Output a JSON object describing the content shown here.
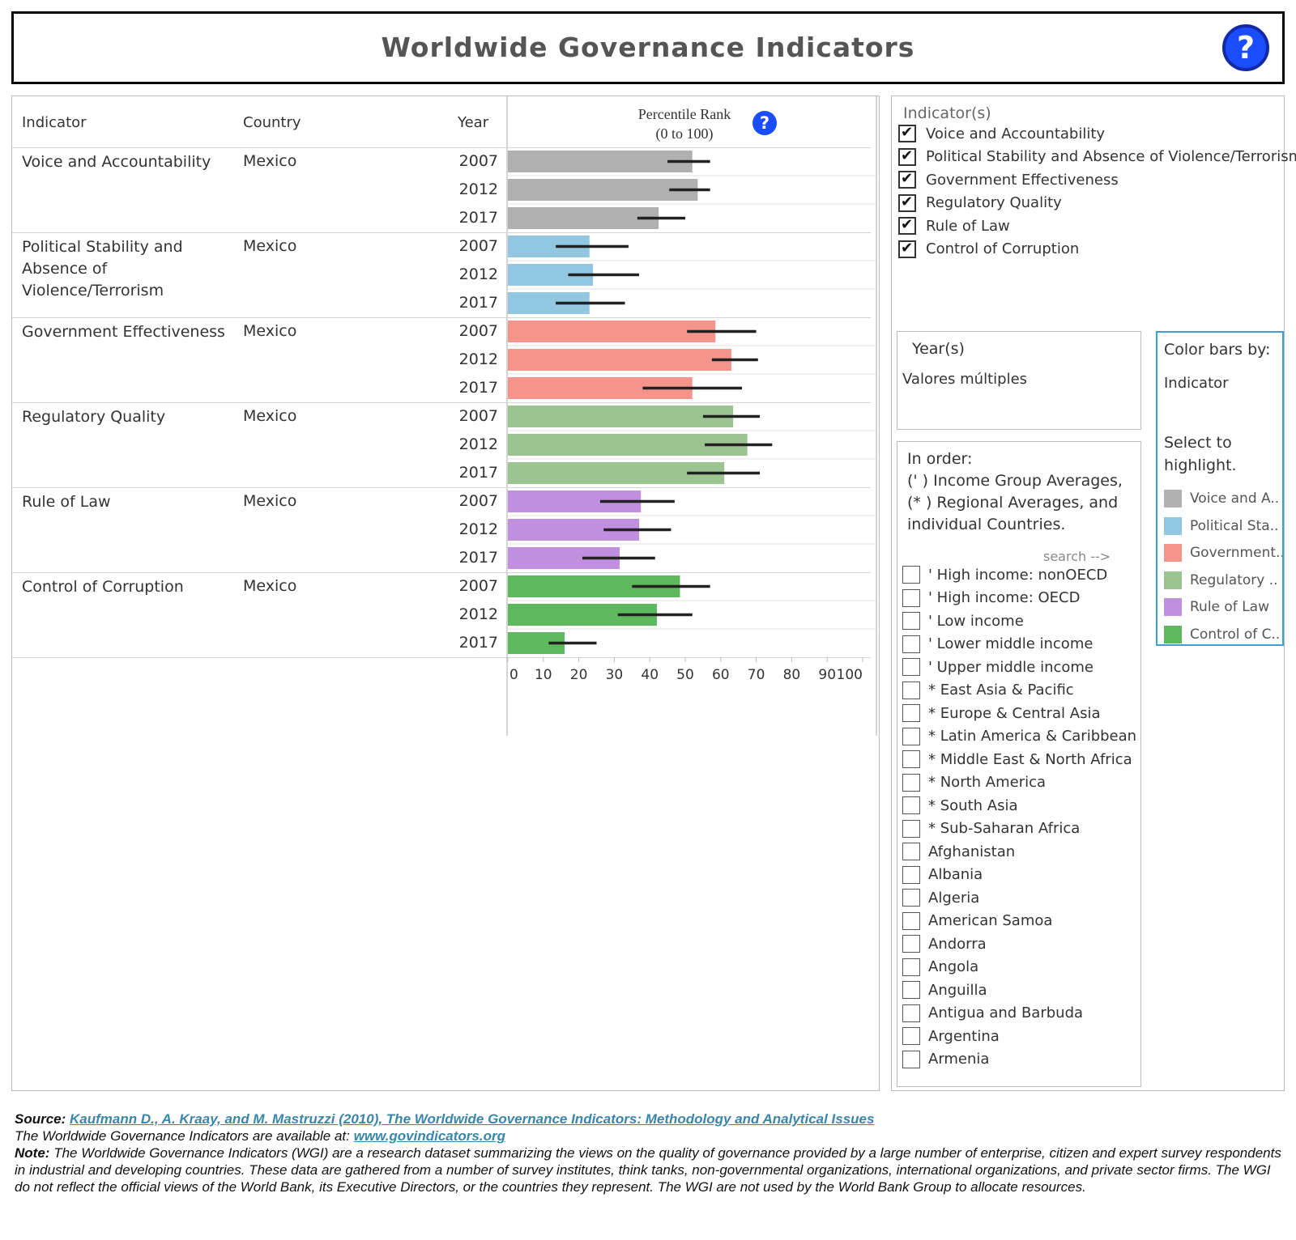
{
  "header": {
    "title": "Worldwide Governance Indicators",
    "help_icon": "question-circle-icon"
  },
  "table": {
    "col_indicator": "Indicator",
    "col_country": "Country",
    "col_year": "Year",
    "axis_title_line1": "Percentile Rank",
    "axis_title_line2": "(0 to 100)",
    "axis_ticks": [
      "0",
      "10",
      "20",
      "30",
      "40",
      "50",
      "60",
      "70",
      "80",
      "90",
      "100"
    ]
  },
  "chart_data": {
    "type": "bar",
    "orientation": "horizontal",
    "xlabel": "Percentile Rank (0 to 100)",
    "xlim": [
      0,
      100
    ],
    "error_bars": true,
    "groups": [
      {
        "indicator": "Voice and Accountability",
        "country": "Mexico",
        "color": "#b0b0b0",
        "rows": [
          {
            "year": "2007",
            "value": 52,
            "low": 45,
            "high": 57
          },
          {
            "year": "2012",
            "value": 53.5,
            "low": 45.5,
            "high": 57
          },
          {
            "year": "2017",
            "value": 42.5,
            "low": 36.5,
            "high": 50
          }
        ]
      },
      {
        "indicator": "Political Stability and Absence of Violence/Terrorism",
        "country": "Mexico",
        "color": "#92c7e2",
        "rows": [
          {
            "year": "2007",
            "value": 23,
            "low": 13.5,
            "high": 34
          },
          {
            "year": "2012",
            "value": 24,
            "low": 17,
            "high": 37
          },
          {
            "year": "2017",
            "value": 23,
            "low": 13.5,
            "high": 33
          }
        ]
      },
      {
        "indicator": "Government Effectiveness",
        "country": "Mexico",
        "color": "#f4948a",
        "rows": [
          {
            "year": "2007",
            "value": 58.5,
            "low": 50.5,
            "high": 70
          },
          {
            "year": "2012",
            "value": 63,
            "low": 57.5,
            "high": 70.5
          },
          {
            "year": "2017",
            "value": 52,
            "low": 38,
            "high": 66
          }
        ]
      },
      {
        "indicator": "Regulatory Quality",
        "country": "Mexico",
        "color": "#9bc490",
        "rows": [
          {
            "year": "2007",
            "value": 63.5,
            "low": 55,
            "high": 71
          },
          {
            "year": "2012",
            "value": 67.5,
            "low": 55.5,
            "high": 74.5
          },
          {
            "year": "2017",
            "value": 61,
            "low": 50.5,
            "high": 71
          }
        ]
      },
      {
        "indicator": "Rule of Law",
        "country": "Mexico",
        "color": "#c08fe0",
        "rows": [
          {
            "year": "2007",
            "value": 37.5,
            "low": 26,
            "high": 47
          },
          {
            "year": "2012",
            "value": 37,
            "low": 27,
            "high": 46
          },
          {
            "year": "2017",
            "value": 31.5,
            "low": 21,
            "high": 41.5
          }
        ]
      },
      {
        "indicator": "Control of Corruption",
        "country": "Mexico",
        "color": "#5eb95e",
        "rows": [
          {
            "year": "2007",
            "value": 48.5,
            "low": 35,
            "high": 57
          },
          {
            "year": "2012",
            "value": 42,
            "low": 31,
            "high": 52
          },
          {
            "year": "2017",
            "value": 16,
            "low": 11.5,
            "high": 25
          }
        ]
      }
    ]
  },
  "filters": {
    "indicators_title": "Indicator(s)",
    "indicators": [
      {
        "label": "Voice and Accountability",
        "checked": true
      },
      {
        "label": "Political Stability and Absence of Violence/Terrorism",
        "checked": true
      },
      {
        "label": "Government Effectiveness",
        "checked": true
      },
      {
        "label": "Regulatory Quality",
        "checked": true
      },
      {
        "label": "Rule of Law",
        "checked": true
      },
      {
        "label": "Control of Corruption",
        "checked": true
      }
    ],
    "years_title": "Year(s)",
    "years_value": "Valores múltiples",
    "order_note": "In order:\n(' ) Income Group Averages,\n(* ) Regional Averages, and\nindividual Countries.",
    "search_hint": "search -->",
    "countries": [
      {
        "label": "' High income: nonOECD",
        "checked": false
      },
      {
        "label": "' High income: OECD",
        "checked": false
      },
      {
        "label": "' Low income",
        "checked": false
      },
      {
        "label": "' Lower middle income",
        "checked": false
      },
      {
        "label": "' Upper middle income",
        "checked": false
      },
      {
        "label": "* East Asia & Pacific",
        "checked": false
      },
      {
        "label": "* Europe & Central Asia",
        "checked": false
      },
      {
        "label": "* Latin America & Caribbean",
        "checked": false
      },
      {
        "label": "* Middle East & North Africa",
        "checked": false
      },
      {
        "label": "* North America",
        "checked": false
      },
      {
        "label": "* South Asia",
        "checked": false
      },
      {
        "label": "* Sub-Saharan Africa",
        "checked": false
      },
      {
        "label": "Afghanistan",
        "checked": false
      },
      {
        "label": "Albania",
        "checked": false
      },
      {
        "label": "Algeria",
        "checked": false
      },
      {
        "label": "American Samoa",
        "checked": false
      },
      {
        "label": "Andorra",
        "checked": false
      },
      {
        "label": "Angola",
        "checked": false
      },
      {
        "label": "Anguilla",
        "checked": false
      },
      {
        "label": "Antigua and Barbuda",
        "checked": false
      },
      {
        "label": "Argentina",
        "checked": false
      },
      {
        "label": "Armenia",
        "checked": false
      }
    ]
  },
  "color_by": {
    "title": "Color bars by:",
    "value": "Indicator",
    "note": "Select to highlight.",
    "legend": [
      {
        "label": "Voice and A..",
        "color": "#b0b0b0"
      },
      {
        "label": "Political Sta..",
        "color": "#92c7e2"
      },
      {
        "label": "Government..",
        "color": "#f4948a"
      },
      {
        "label": "Regulatory ..",
        "color": "#9bc490"
      },
      {
        "label": "Rule of Law",
        "color": "#c08fe0"
      },
      {
        "label": "Control of C..",
        "color": "#5eb95e"
      }
    ]
  },
  "footer": {
    "source_label": "Source:",
    "source_link": "Kaufmann D., A. Kraay, and M. Mastruzzi (2010), The Worldwide Governance Indicators: Methodology and Analytical Issues",
    "available_text": "The Worldwide Governance Indicators are available at:",
    "available_link": "www.govindicators.org",
    "note_label": "Note:",
    "note_text": "The Worldwide Governance Indicators (WGI) are a research dataset summarizing the views on the quality of governance provided by a large number of enterprise, citizen and expert survey respondents in industrial and developing countries. These data are gathered from a number of survey institutes, think tanks, non-governmental organizations, international organizations, and private sector firms. The WGI do not reflect the official views of the World Bank, its Executive Directors, or the countries they represent. The WGI are not used by the World Bank Group to allocate resources."
  }
}
